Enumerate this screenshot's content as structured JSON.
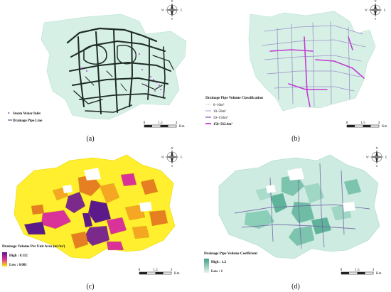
{
  "panels": {
    "a": {
      "label": "(a)",
      "legend": [
        {
          "text": "Storm Water Inlet",
          "color": "#7a3f8f"
        },
        {
          "text": "Drainage Pipe Line",
          "color": "#4a5a8a"
        }
      ]
    },
    "b": {
      "label": "(b)",
      "legend_title": "Drainage Pipe Volume Classification",
      "classes": [
        {
          "text": "0–10m³",
          "color": "#bfe6dd"
        },
        {
          "text": "10–50m³",
          "color": "#b9a9d6"
        },
        {
          "text": "50–150m³",
          "color": "#9a63c0"
        },
        {
          "text": "150–562.4m³",
          "color": "#c13bd0"
        }
      ]
    },
    "c": {
      "label": "(c)",
      "legend_title": "Drainage Volume Per Unit Area (m³/m²)",
      "high": "High : 0.112",
      "low": "Low : 0.001",
      "high_color": "#5b1a8a",
      "mid_color": "#d9339a",
      "low_color": "#ffea00"
    },
    "d": {
      "label": "(d)",
      "legend_title": "Drainage Pipe Volume Coefficient",
      "high": "High : 1.2",
      "low": "Low : 1",
      "high_color": "#3f9f88",
      "low_color": "#e6f5ee"
    }
  },
  "scalebar": {
    "ticks": [
      "0",
      "1.5",
      "3"
    ],
    "unit": "Km"
  },
  "north_arrow": {
    "n": "N",
    "s": "S",
    "e": "E",
    "w": "W"
  },
  "colors": {
    "city_fill": "#d7f0e6",
    "pipe_dark": "#1e2a26",
    "pipe_purple": "#b04ec8",
    "pipe_mid": "#8c7cc0"
  }
}
